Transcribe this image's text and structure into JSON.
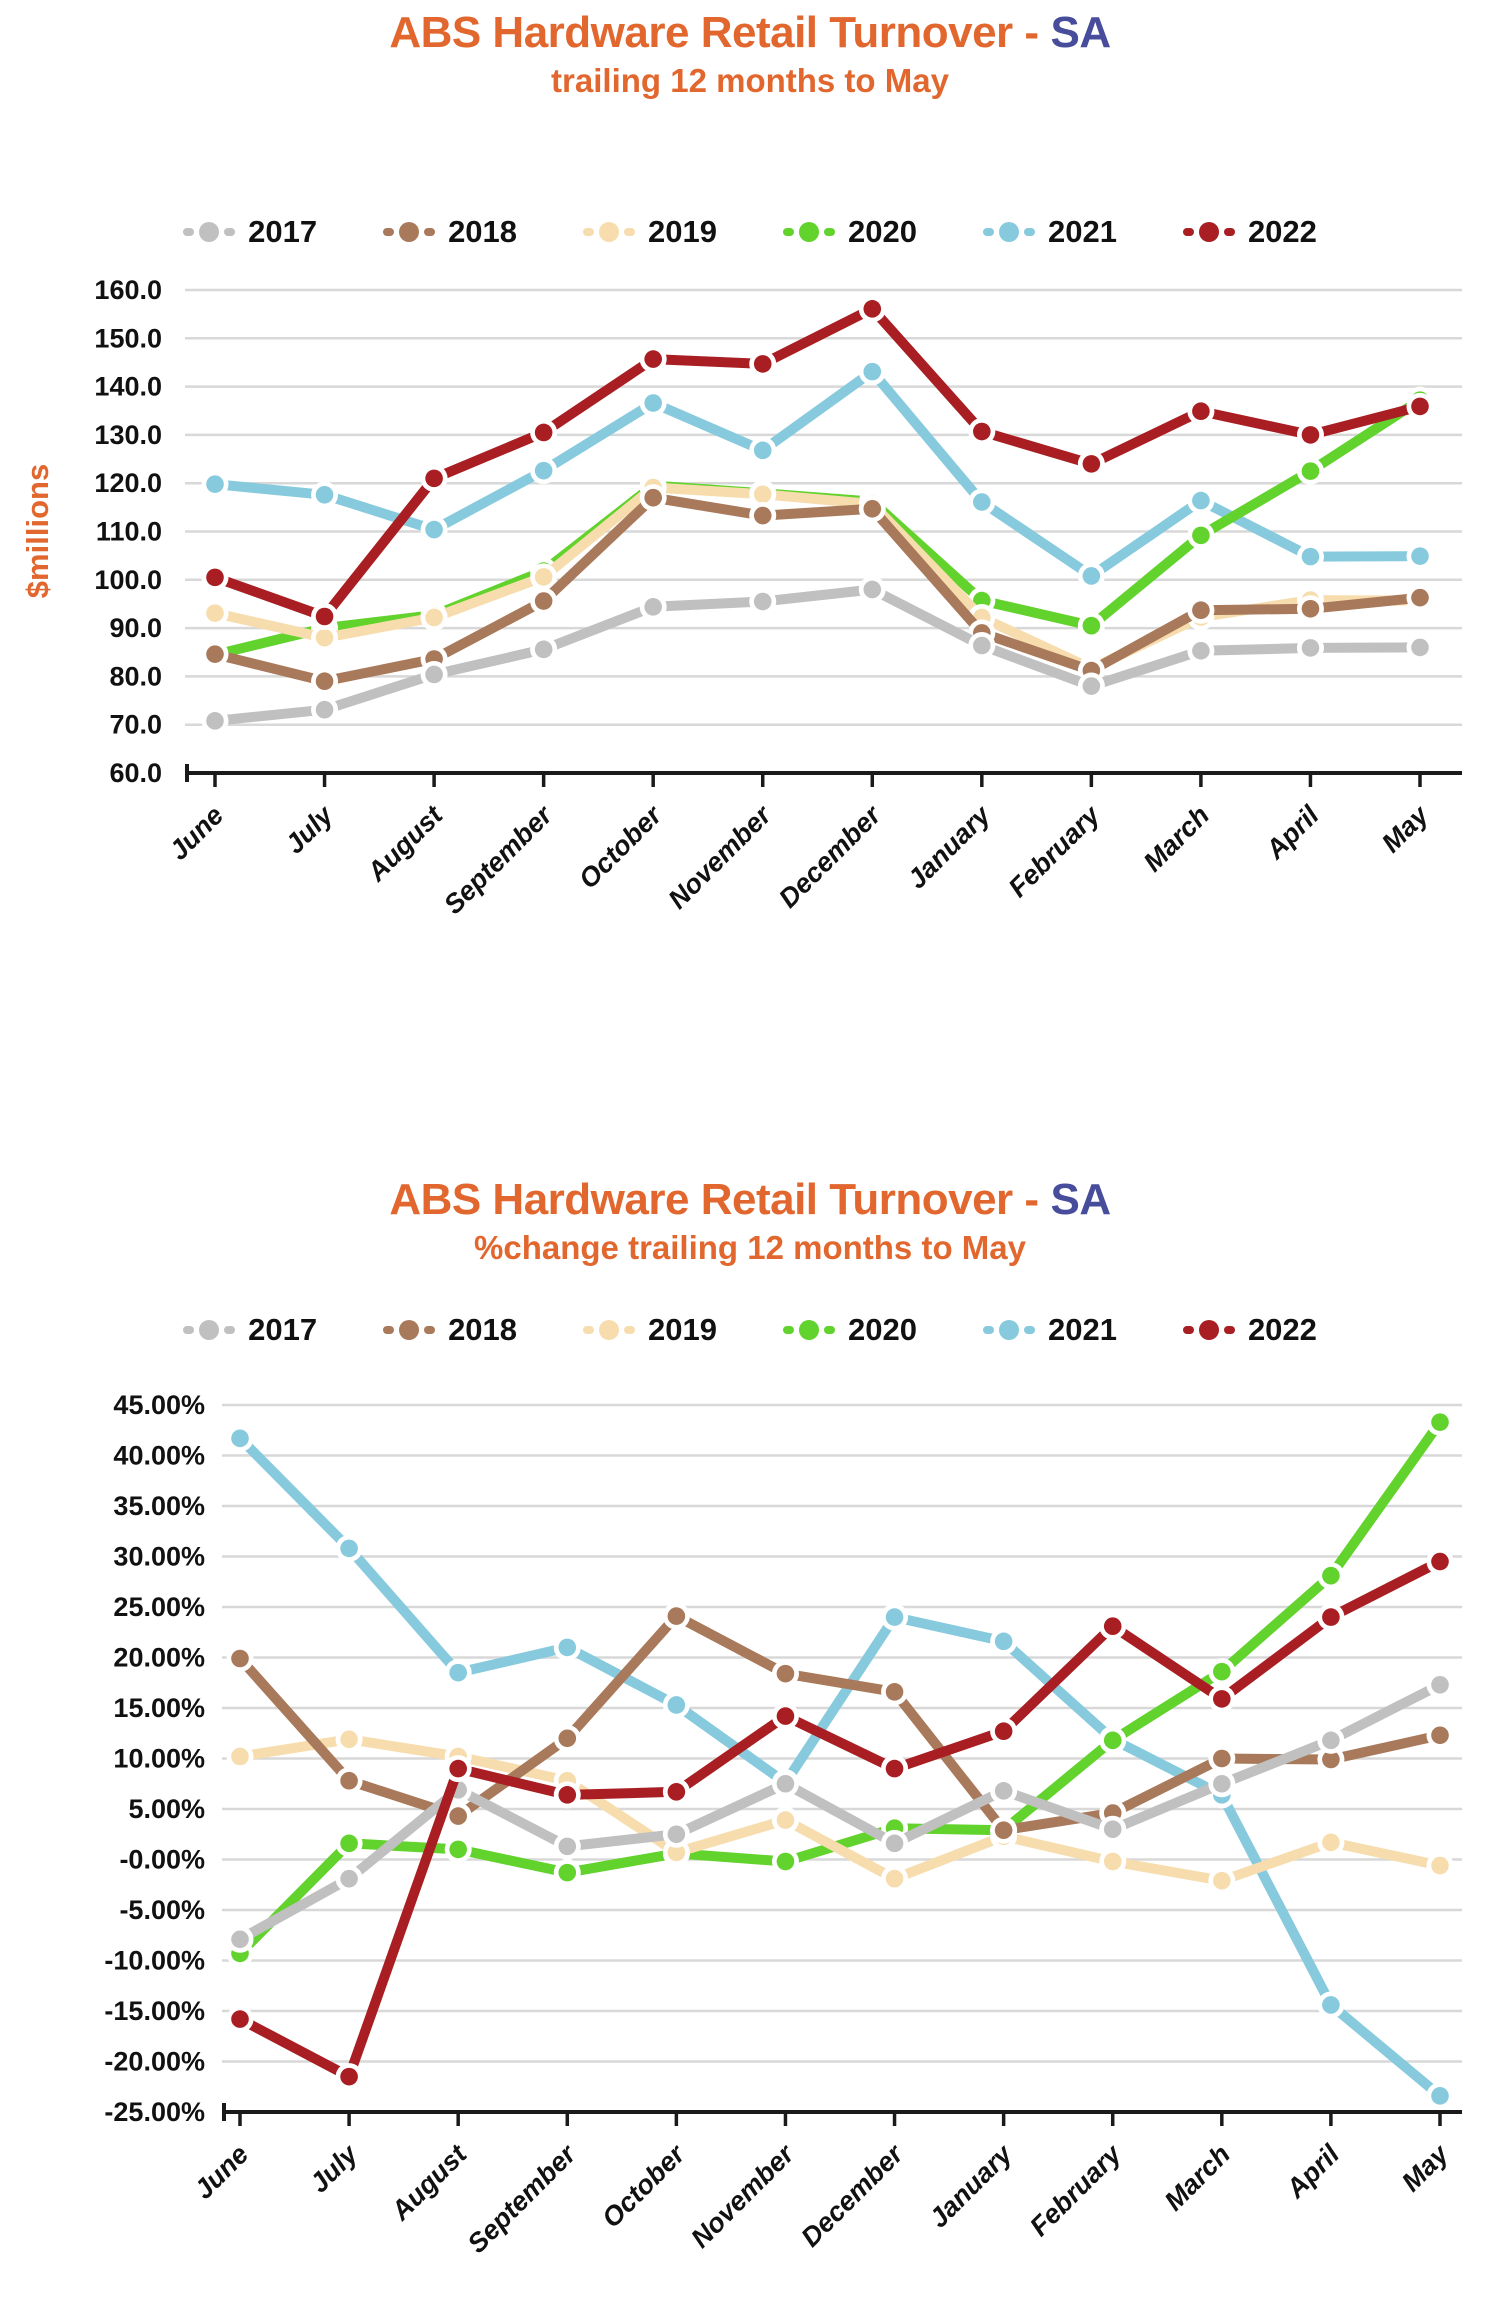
{
  "colors": {
    "title_orange": "#e1672e",
    "title_navy": "#474c9b",
    "grid": "#d8d8d8",
    "axis": "#1a1a1a"
  },
  "chart_data": [
    {
      "type": "line",
      "title": "ABS Hardware Retail Turnover - SA",
      "title_main": "ABS Hardware Retail Turnover -",
      "title_accent": "SA",
      "subtitle": "trailing 12 months to May",
      "ylabel": "$millions",
      "xlabel": "",
      "ylim": [
        60,
        160
      ],
      "ytick_step": 10,
      "grid": true,
      "legend_position": "top",
      "ytick_labels": [
        "160.0",
        "150.0",
        "140.0",
        "130.0",
        "120.0",
        "110.0",
        "100.0",
        "90.0",
        "80.0",
        "70.0",
        "60.0"
      ],
      "categories": [
        "June",
        "July",
        "August",
        "September",
        "October",
        "November",
        "December",
        "January",
        "February",
        "March",
        "April",
        "May"
      ],
      "series": [
        {
          "name": "2017",
          "color": "#c0c0c0",
          "values": [
            70.8,
            73.1,
            80.4,
            85.6,
            94.4,
            95.5,
            98.0,
            86.4,
            78.0,
            85.3,
            85.9,
            86.0
          ]
        },
        {
          "name": "2018",
          "color": "#a8795a",
          "values": [
            84.6,
            79.0,
            83.6,
            95.6,
            117.0,
            113.3,
            114.7,
            89.0,
            81.2,
            93.7,
            94.0,
            96.3
          ]
        },
        {
          "name": "2019",
          "color": "#f7ddae",
          "values": [
            93.1,
            88.0,
            92.2,
            100.6,
            119.1,
            117.7,
            115.7,
            92.2,
            81.6,
            92.3,
            95.8,
            95.7
          ]
        },
        {
          "name": "2020",
          "color": "#62d22c",
          "values": [
            84.5,
            90.0,
            92.7,
            101.8,
            119.5,
            117.9,
            116.2,
            95.7,
            90.5,
            109.2,
            122.5,
            137.2
          ]
        },
        {
          "name": "2021",
          "color": "#87cadd",
          "values": [
            119.8,
            117.6,
            110.4,
            122.6,
            136.6,
            126.8,
            143.1,
            116.1,
            100.8,
            116.4,
            104.8,
            104.9
          ]
        },
        {
          "name": "2022",
          "color": "#a81e22",
          "values": [
            100.5,
            92.4,
            121.0,
            130.5,
            145.7,
            144.7,
            156.1,
            130.7,
            124.0,
            134.9,
            130.0,
            135.9
          ]
        }
      ]
    },
    {
      "type": "line",
      "title": "ABS Hardware Retail Turnover - SA",
      "title_main": "ABS Hardware Retail Turnover -",
      "title_accent": "SA",
      "subtitle": "%change trailing 12 months to May",
      "ylabel": "",
      "xlabel": "",
      "ylim": [
        -25,
        45
      ],
      "ytick_step": 5,
      "grid": true,
      "legend_position": "top",
      "ytick_labels": [
        "45.00%",
        "40.00%",
        "35.00%",
        "30.00%",
        "25.00%",
        "20.00%",
        "15.00%",
        "10.00%",
        "5.00%",
        "-0.00%",
        "-5.00%",
        "-10.00%",
        "-15.00%",
        "-20.00%",
        "-25.00%"
      ],
      "categories": [
        "June",
        "July",
        "August",
        "September",
        "October",
        "November",
        "December",
        "January",
        "February",
        "March",
        "April",
        "May"
      ],
      "series": [
        {
          "name": "2017",
          "color": "#c0c0c0",
          "values": [
            -7.9,
            -1.9,
            6.9,
            1.3,
            2.5,
            7.5,
            1.6,
            6.8,
            3.0,
            7.5,
            11.8,
            17.3
          ]
        },
        {
          "name": "2018",
          "color": "#a8795a",
          "values": [
            19.9,
            7.8,
            4.3,
            12.0,
            24.1,
            18.4,
            16.6,
            2.9,
            4.6,
            10.0,
            9.9,
            12.3
          ]
        },
        {
          "name": "2019",
          "color": "#f7ddae",
          "values": [
            10.2,
            11.9,
            10.2,
            7.8,
            0.7,
            3.9,
            -1.9,
            2.3,
            -0.2,
            -2.1,
            1.7,
            -0.6
          ]
        },
        {
          "name": "2020",
          "color": "#62d22c",
          "values": [
            -9.3,
            1.6,
            1.0,
            -1.3,
            0.6,
            -0.2,
            3.1,
            2.9,
            11.8,
            18.6,
            28.1,
            43.3
          ]
        },
        {
          "name": "2021",
          "color": "#87cadd",
          "values": [
            41.7,
            30.8,
            18.5,
            21.0,
            15.3,
            7.6,
            24.0,
            21.6,
            11.9,
            6.4,
            -14.4,
            -23.4
          ]
        },
        {
          "name": "2022",
          "color": "#a81e22",
          "values": [
            -15.8,
            -21.5,
            9.0,
            6.4,
            6.7,
            14.2,
            9.0,
            12.7,
            23.1,
            15.9,
            24.0,
            29.5
          ]
        }
      ]
    }
  ]
}
